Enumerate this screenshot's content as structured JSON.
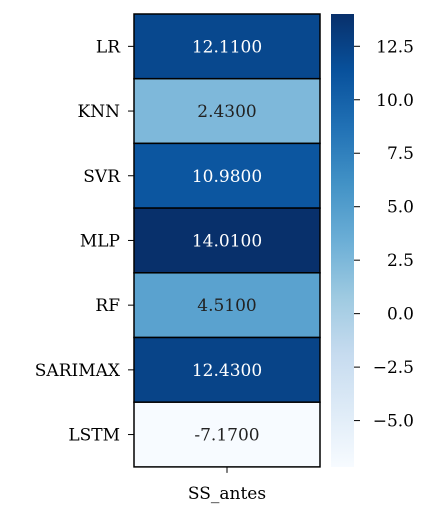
{
  "chart_data": {
    "type": "heatmap",
    "rows": [
      "LR",
      "KNN",
      "SVR",
      "MLP",
      "RF",
      "SARIMAX",
      "LSTM"
    ],
    "columns": [
      "SS_antes"
    ],
    "values": [
      12.11,
      2.43,
      10.98,
      14.01,
      4.51,
      12.43,
      -7.17
    ],
    "cell_labels": [
      "12.1100",
      "2.4300",
      "10.9800",
      "14.0100",
      "4.5100",
      "12.4300",
      "-7.1700"
    ],
    "colorbar": {
      "cmap": "Blues",
      "min": -7.17,
      "max": 14.01,
      "ticks": [
        12.5,
        10.0,
        7.5,
        5.0,
        2.5,
        0.0,
        -2.5,
        -5.0
      ],
      "tick_labels": [
        "12.5",
        "10.0",
        "7.5",
        "5.0",
        "2.5",
        "0.0",
        "−2.5",
        "−5.0"
      ]
    },
    "xlabel": "",
    "ylabel": ""
  }
}
